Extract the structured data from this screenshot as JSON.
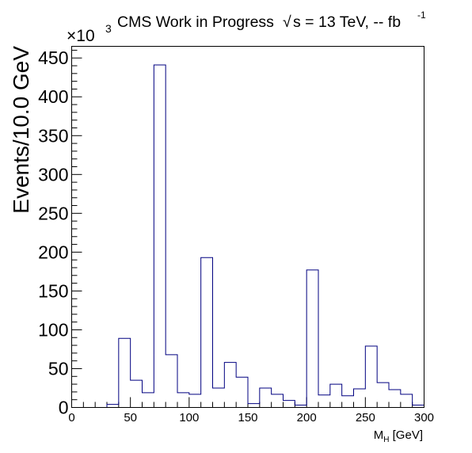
{
  "chart_data": {
    "type": "bar",
    "title": "CMS Work in Progress",
    "title_energy": "s = 13 TeV, -- fb",
    "title_energy_root": "√",
    "title_energy_exp": "-1",
    "ylabel": "Events/10.0 GeV",
    "xlabel": "M",
    "xlabel_sub": "H",
    "xlabel_unit": " [GeV]",
    "y_multiplier": "×10",
    "y_multiplier_exp": "3",
    "xlim": [
      0,
      300
    ],
    "ylim": [
      0,
      465
    ],
    "grid": false,
    "bin_width": 10,
    "line_color": "#000080",
    "x_ticks": [
      0,
      50,
      100,
      150,
      200,
      250,
      300
    ],
    "y_ticks": [
      0,
      50,
      100,
      150,
      200,
      250,
      300,
      350,
      400,
      450
    ],
    "x_tick_labels": [
      "0",
      "50",
      "100",
      "150",
      "200",
      "250",
      "300"
    ],
    "y_tick_labels": [
      "0",
      "50",
      "100",
      "150",
      "200",
      "250",
      "300",
      "350",
      "400",
      "450"
    ],
    "bin_edges": [
      0,
      10,
      20,
      30,
      40,
      50,
      60,
      70,
      80,
      90,
      100,
      110,
      120,
      130,
      140,
      150,
      160,
      170,
      180,
      190,
      200,
      210,
      220,
      230,
      240,
      250,
      260,
      270,
      280,
      290,
      300
    ],
    "values": [
      0,
      0,
      0,
      4,
      89,
      35,
      19,
      441,
      68,
      19,
      17,
      193,
      25,
      58,
      39,
      5,
      25,
      17,
      9,
      3,
      177,
      16,
      30,
      15,
      24,
      79,
      32,
      23,
      17,
      3
    ]
  }
}
